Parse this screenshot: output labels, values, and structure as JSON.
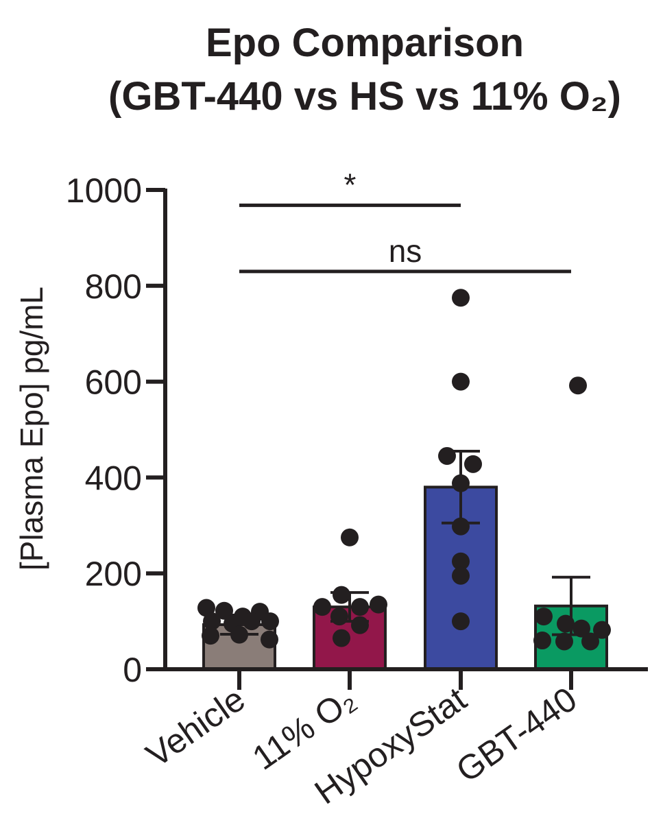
{
  "chart_data": {
    "type": "bar",
    "title_line1": "Epo Comparison",
    "title_line2": "(GBT-440 vs HS vs 11% O₂)",
    "ylabel": "[Plasma Epo] pg/mL",
    "xlabel": "",
    "ylim": [
      0,
      1000
    ],
    "yticks": [
      0,
      200,
      400,
      600,
      800,
      1000
    ],
    "ytick_labels": [
      "0",
      "200",
      "400",
      "600",
      "800",
      "1000"
    ],
    "categories": [
      "Vehicle",
      "11% O₂",
      "HypoxyStat",
      "GBT-440"
    ],
    "means": [
      93,
      130,
      380,
      132
    ],
    "sem": [
      20,
      30,
      75,
      60
    ],
    "colors": [
      "#8a7d78",
      "#92174a",
      "#3c4aa0",
      "#0a9a62"
    ],
    "points": [
      [
        [
          -48,
          128
        ],
        [
          -22,
          122
        ],
        [
          5,
          110
        ],
        [
          30,
          120
        ],
        [
          -40,
          100
        ],
        [
          -10,
          95
        ],
        [
          18,
          100
        ],
        [
          45,
          100
        ],
        [
          -42,
          70
        ],
        [
          0,
          72
        ],
        [
          44,
          62
        ]
      ],
      [
        [
          -40,
          130
        ],
        [
          -12,
          155
        ],
        [
          15,
          130
        ],
        [
          42,
          135
        ],
        [
          -15,
          110
        ],
        [
          15,
          92
        ],
        [
          -12,
          65
        ],
        [
          0,
          275
        ]
      ],
      [
        [
          0,
          775
        ],
        [
          0,
          600
        ],
        [
          -20,
          445
        ],
        [
          18,
          428
        ],
        [
          0,
          388
        ],
        [
          0,
          298
        ],
        [
          0,
          225
        ],
        [
          0,
          195
        ],
        [
          0,
          100
        ]
      ],
      [
        [
          -40,
          110
        ],
        [
          -8,
          95
        ],
        [
          15,
          85
        ],
        [
          45,
          82
        ],
        [
          -42,
          60
        ],
        [
          -10,
          58
        ],
        [
          28,
          58
        ],
        [
          10,
          592
        ]
      ]
    ],
    "significance": [
      {
        "from": 0,
        "to": 2,
        "y": 968,
        "label": "*"
      },
      {
        "from": 0,
        "to": 3,
        "y": 830,
        "label": "ns"
      }
    ],
    "grid": false,
    "legend": "none"
  }
}
